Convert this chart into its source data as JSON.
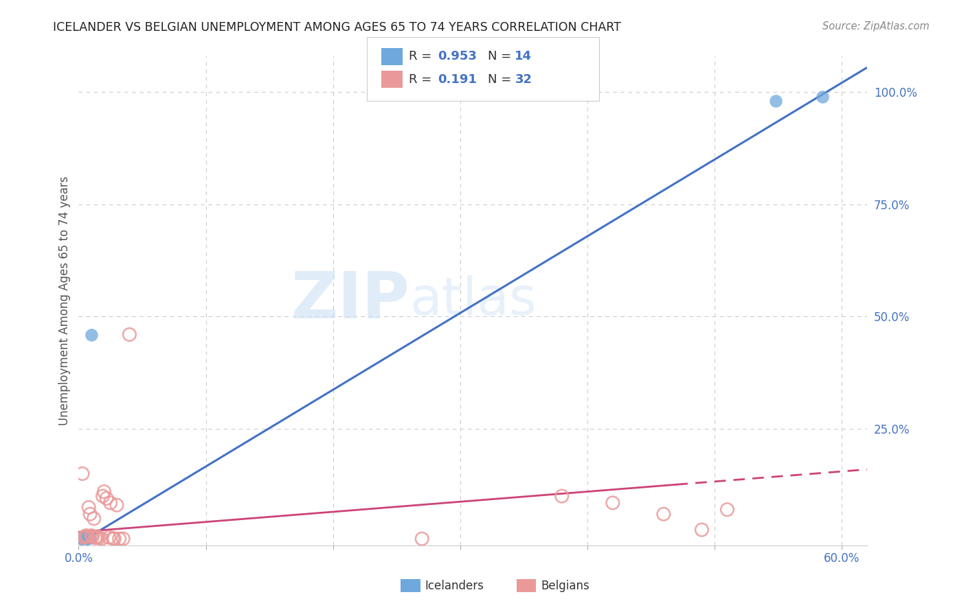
{
  "title": "ICELANDER VS BELGIAN UNEMPLOYMENT AMONG AGES 65 TO 74 YEARS CORRELATION CHART",
  "source": "Source: ZipAtlas.com",
  "ylabel": "Unemployment Among Ages 65 to 74 years",
  "xlim": [
    0.0,
    0.62
  ],
  "ylim": [
    -0.01,
    1.08
  ],
  "xticks": [
    0.0,
    0.1,
    0.2,
    0.3,
    0.4,
    0.5,
    0.6
  ],
  "xticklabels": [
    "0.0%",
    "",
    "",
    "",
    "",
    "",
    "60.0%"
  ],
  "yticks_right": [
    0.0,
    0.25,
    0.5,
    0.75,
    1.0
  ],
  "ytick_right_labels": [
    "",
    "25.0%",
    "50.0%",
    "75.0%",
    "100.0%"
  ],
  "icelanders_x": [
    0.002,
    0.003,
    0.004,
    0.004,
    0.005,
    0.005,
    0.006,
    0.006,
    0.007,
    0.008,
    0.009,
    0.01,
    0.548,
    0.585
  ],
  "icelanders_y": [
    0.005,
    0.005,
    0.008,
    0.01,
    0.007,
    0.01,
    0.005,
    0.008,
    0.006,
    0.01,
    0.007,
    0.46,
    0.98,
    0.99
  ],
  "belgians_x": [
    0.003,
    0.004,
    0.005,
    0.006,
    0.007,
    0.008,
    0.009,
    0.01,
    0.011,
    0.012,
    0.013,
    0.014,
    0.015,
    0.016,
    0.018,
    0.019,
    0.02,
    0.022,
    0.024,
    0.025,
    0.027,
    0.028,
    0.03,
    0.032,
    0.035,
    0.04,
    0.27,
    0.38,
    0.42,
    0.46,
    0.49,
    0.51
  ],
  "belgians_y": [
    0.15,
    0.008,
    0.01,
    0.012,
    0.01,
    0.075,
    0.06,
    0.012,
    0.01,
    0.05,
    0.007,
    0.008,
    0.01,
    0.007,
    0.005,
    0.1,
    0.11,
    0.095,
    0.008,
    0.085,
    0.006,
    0.005,
    0.08,
    0.005,
    0.005,
    0.46,
    0.005,
    0.1,
    0.085,
    0.06,
    0.025,
    0.07
  ],
  "blue_color": "#a4c2f4",
  "blue_fill": "#6fa8dc",
  "pink_color": "#ea9999",
  "blue_line_color": "#4472c4",
  "pink_line_color": "#cc4477",
  "watermark_zip": "ZIP",
  "watermark_atlas": "atlas",
  "grid_color": "#cccccc",
  "title_color": "#222222",
  "axis_color": "#4472c4",
  "source_color": "#888888"
}
